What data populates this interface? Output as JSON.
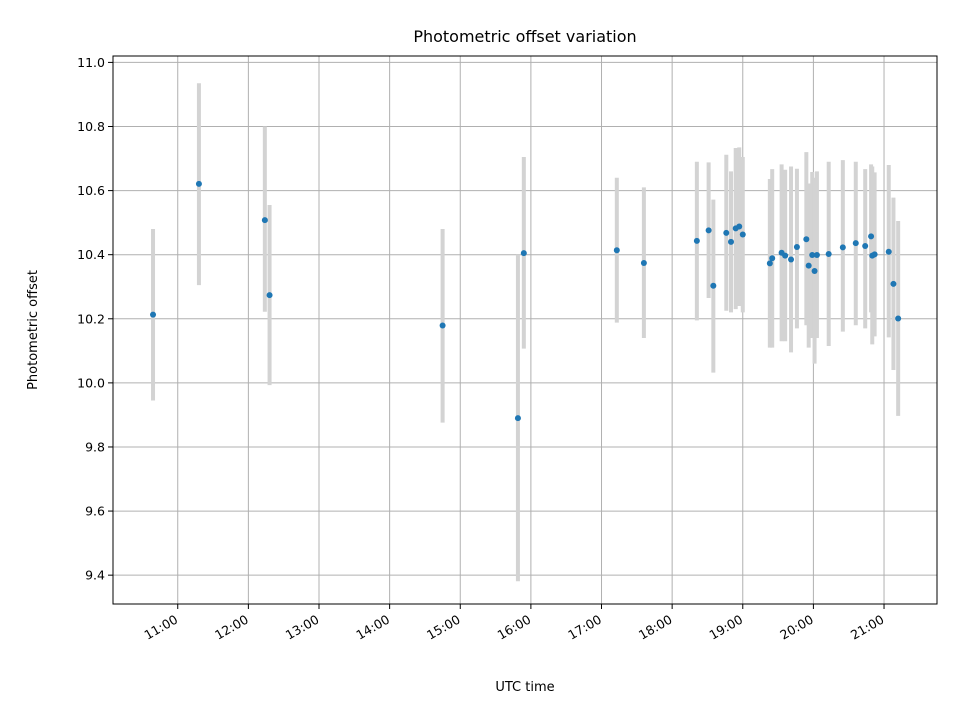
{
  "chart_data": {
    "type": "scatter",
    "title": "Photometric offset variation",
    "xlabel": "UTC time",
    "ylabel": "Photometric offset",
    "x_unit": "hours UTC",
    "xlim": [
      "10:05",
      "21:45"
    ],
    "ylim": [
      9.31,
      11.02
    ],
    "x_ticks": [
      "11:00",
      "12:00",
      "13:00",
      "14:00",
      "15:00",
      "16:00",
      "17:00",
      "18:00",
      "19:00",
      "20:00",
      "21:00"
    ],
    "y_ticks": [
      "9.4",
      "9.6",
      "9.8",
      "10.0",
      "10.2",
      "10.4",
      "10.6",
      "10.8",
      "11.0"
    ],
    "grid": true,
    "legend": "none",
    "marker_color": "#1f77b4",
    "errorbar_color": "#d3d3d3",
    "points": [
      {
        "x": "10:39",
        "y": 10.213,
        "lo": 9.945,
        "hi": 10.48
      },
      {
        "x": "11:18",
        "y": 10.621,
        "lo": 10.305,
        "hi": 10.935
      },
      {
        "x": "12:14",
        "y": 10.508,
        "lo": 10.222,
        "hi": 10.8
      },
      {
        "x": "12:18",
        "y": 10.274,
        "lo": 9.993,
        "hi": 10.555
      },
      {
        "x": "14:45",
        "y": 10.179,
        "lo": 9.876,
        "hi": 10.48
      },
      {
        "x": "15:49",
        "y": 9.89,
        "lo": 9.381,
        "hi": 10.4
      },
      {
        "x": "15:54",
        "y": 10.405,
        "lo": 10.107,
        "hi": 10.705
      },
      {
        "x": "17:13",
        "y": 10.414,
        "lo": 10.188,
        "hi": 10.64
      },
      {
        "x": "17:36",
        "y": 10.374,
        "lo": 10.14,
        "hi": 10.61
      },
      {
        "x": "18:21",
        "y": 10.443,
        "lo": 10.195,
        "hi": 10.69
      },
      {
        "x": "18:31",
        "y": 10.476,
        "lo": 10.265,
        "hi": 10.688
      },
      {
        "x": "18:35",
        "y": 10.303,
        "lo": 10.032,
        "hi": 10.572
      },
      {
        "x": "18:46",
        "y": 10.468,
        "lo": 10.225,
        "hi": 10.712
      },
      {
        "x": "18:50",
        "y": 10.44,
        "lo": 10.22,
        "hi": 10.66
      },
      {
        "x": "18:54",
        "y": 10.482,
        "lo": 10.23,
        "hi": 10.733
      },
      {
        "x": "18:57",
        "y": 10.488,
        "lo": 10.24,
        "hi": 10.735
      },
      {
        "x": "19:00",
        "y": 10.463,
        "lo": 10.22,
        "hi": 10.705
      },
      {
        "x": "19:23",
        "y": 10.373,
        "lo": 10.11,
        "hi": 10.636
      },
      {
        "x": "19:25",
        "y": 10.389,
        "lo": 10.11,
        "hi": 10.667
      },
      {
        "x": "19:33",
        "y": 10.406,
        "lo": 10.13,
        "hi": 10.682
      },
      {
        "x": "19:36",
        "y": 10.397,
        "lo": 10.13,
        "hi": 10.665
      },
      {
        "x": "19:41",
        "y": 10.385,
        "lo": 10.095,
        "hi": 10.675
      },
      {
        "x": "19:46",
        "y": 10.424,
        "lo": 10.17,
        "hi": 10.668
      },
      {
        "x": "19:54",
        "y": 10.448,
        "lo": 10.18,
        "hi": 10.72
      },
      {
        "x": "19:56",
        "y": 10.366,
        "lo": 10.11,
        "hi": 10.622
      },
      {
        "x": "19:59",
        "y": 10.399,
        "lo": 10.14,
        "hi": 10.658
      },
      {
        "x": "20:01",
        "y": 10.349,
        "lo": 10.06,
        "hi": 10.64
      },
      {
        "x": "20:03",
        "y": 10.399,
        "lo": 10.14,
        "hi": 10.66
      },
      {
        "x": "20:13",
        "y": 10.402,
        "lo": 10.115,
        "hi": 10.69
      },
      {
        "x": "20:25",
        "y": 10.423,
        "lo": 10.16,
        "hi": 10.695
      },
      {
        "x": "20:36",
        "y": 10.436,
        "lo": 10.18,
        "hi": 10.69
      },
      {
        "x": "20:44",
        "y": 10.427,
        "lo": 10.17,
        "hi": 10.667
      },
      {
        "x": "20:49",
        "y": 10.457,
        "lo": 10.22,
        "hi": 10.682
      },
      {
        "x": "20:50",
        "y": 10.397,
        "lo": 10.12,
        "hi": 10.675
      },
      {
        "x": "20:52",
        "y": 10.401,
        "lo": 10.145,
        "hi": 10.657
      },
      {
        "x": "21:04",
        "y": 10.409,
        "lo": 10.142,
        "hi": 10.68
      },
      {
        "x": "21:08",
        "y": 10.309,
        "lo": 10.04,
        "hi": 10.578
      },
      {
        "x": "21:12",
        "y": 10.201,
        "lo": 9.897,
        "hi": 10.505
      }
    ]
  }
}
